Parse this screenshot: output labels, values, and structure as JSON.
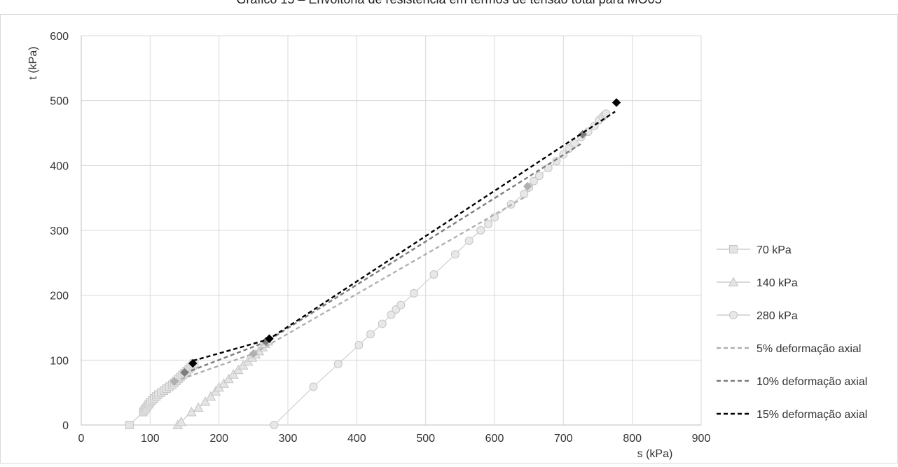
{
  "chart_data": {
    "type": "scatter",
    "title": "Gráfico 15 – Envoltória de resistência em termos de tensão total para MO03",
    "xlabel": "s (kPa)",
    "ylabel": "t (kPa)",
    "xlim": [
      0,
      900
    ],
    "ylim": [
      0,
      600
    ],
    "xticks": [
      "0",
      "100",
      "200",
      "300",
      "400",
      "500",
      "600",
      "700",
      "800",
      "900"
    ],
    "yticks": [
      "0",
      "100",
      "200",
      "300",
      "400",
      "500",
      "600"
    ],
    "grid": "on",
    "legend_position": "right",
    "colors": {
      "s70": "#c8c8c8",
      "s140": "#c8c8c8",
      "s280": "#cfcfcf",
      "e5": "#b0b0b0",
      "e10": "#7d7d7d",
      "e15": "#000000",
      "grid": "#d9d9d9"
    },
    "series": [
      {
        "name": "70 kPa",
        "key": "s70",
        "marker": "square",
        "style": "solid",
        "points": [
          [
            70,
            0
          ],
          [
            90,
            20
          ],
          [
            92,
            23
          ],
          [
            94,
            26
          ],
          [
            96,
            29
          ],
          [
            98,
            32
          ],
          [
            100,
            35
          ],
          [
            103,
            38
          ],
          [
            106,
            41
          ],
          [
            109,
            44
          ],
          [
            112,
            47
          ],
          [
            116,
            50
          ],
          [
            120,
            53
          ],
          [
            124,
            56
          ],
          [
            128,
            59
          ],
          [
            132,
            62
          ],
          [
            135,
            65
          ],
          [
            138,
            68
          ],
          [
            141,
            71
          ],
          [
            144,
            74
          ],
          [
            147,
            77
          ],
          [
            150,
            80
          ],
          [
            153,
            83
          ],
          [
            156,
            86
          ],
          [
            159,
            89
          ],
          [
            162,
            92
          ],
          [
            164,
            95
          ]
        ]
      },
      {
        "name": "140 kPa",
        "key": "s140",
        "marker": "triangle",
        "style": "solid",
        "points": [
          [
            140,
            0
          ],
          [
            145,
            5
          ],
          [
            160,
            20
          ],
          [
            170,
            27
          ],
          [
            180,
            36
          ],
          [
            188,
            44
          ],
          [
            195,
            52
          ],
          [
            200,
            58
          ],
          [
            207,
            64
          ],
          [
            214,
            71
          ],
          [
            221,
            78
          ],
          [
            228,
            85
          ],
          [
            235,
            92
          ],
          [
            242,
            98
          ],
          [
            248,
            104
          ],
          [
            253,
            109
          ],
          [
            258,
            114
          ],
          [
            263,
            120
          ],
          [
            267,
            125
          ],
          [
            271,
            129
          ]
        ]
      },
      {
        "name": "280 kPa",
        "key": "s280",
        "marker": "circle",
        "style": "solid",
        "points": [
          [
            280,
            0
          ],
          [
            337,
            59
          ],
          [
            373,
            94
          ],
          [
            403,
            123
          ],
          [
            420,
            140
          ],
          [
            437,
            156
          ],
          [
            450,
            170
          ],
          [
            457,
            178
          ],
          [
            464,
            185
          ],
          [
            483,
            203
          ],
          [
            512,
            232
          ],
          [
            543,
            263
          ],
          [
            563,
            284
          ],
          [
            580,
            300
          ],
          [
            591,
            310
          ],
          [
            600,
            320
          ],
          [
            624,
            340
          ],
          [
            643,
            356
          ],
          [
            650,
            366
          ],
          [
            657,
            376
          ],
          [
            665,
            384
          ],
          [
            678,
            396
          ],
          [
            690,
            407
          ],
          [
            700,
            417
          ],
          [
            708,
            426
          ],
          [
            716,
            434
          ],
          [
            726,
            444
          ],
          [
            736,
            452
          ],
          [
            745,
            461
          ],
          [
            752,
            470
          ],
          [
            757,
            475
          ],
          [
            760,
            478
          ],
          [
            762,
            480
          ]
        ]
      },
      {
        "name": "5% deformação axial",
        "key": "e5",
        "marker": "diamond",
        "style": "dashed",
        "line": [
          [
            135,
            67
          ],
          [
            250,
            110
          ],
          [
            645,
            352
          ]
        ],
        "markers": [
          [
            135,
            67
          ],
          [
            250,
            110
          ],
          [
            648,
            368
          ]
        ]
      },
      {
        "name": "10% deformação axial",
        "key": "e10",
        "marker": "diamond",
        "style": "dashed",
        "line": [
          [
            150,
            80
          ],
          [
            268,
            128
          ],
          [
            725,
            433
          ]
        ],
        "markers": [
          [
            150,
            81
          ],
          [
            268,
            129
          ],
          [
            728,
            448
          ]
        ]
      },
      {
        "name": "15% deformação axial",
        "key": "e15",
        "marker": "diamond",
        "style": "dashed",
        "line": [
          [
            162,
            99
          ],
          [
            272,
            132
          ],
          [
            775,
            483
          ]
        ],
        "markers": [
          [
            162,
            95
          ],
          [
            273,
            133
          ],
          [
            777,
            497
          ]
        ]
      }
    ]
  }
}
